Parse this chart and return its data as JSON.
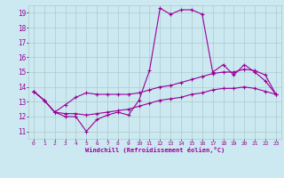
{
  "xlabel": "Windchill (Refroidissement éolien,°C)",
  "ylabel": "",
  "bg_color": "#cce8f0",
  "grid_color": "#aacccc",
  "line_color": "#990099",
  "x_data": [
    0,
    1,
    2,
    3,
    4,
    5,
    6,
    7,
    8,
    9,
    10,
    11,
    12,
    13,
    14,
    15,
    16,
    17,
    18,
    19,
    20,
    21,
    22,
    23
  ],
  "line1": [
    13.7,
    13.1,
    12.3,
    12.0,
    12.0,
    11.0,
    11.8,
    12.1,
    12.3,
    12.1,
    13.1,
    15.1,
    19.3,
    18.9,
    19.2,
    19.2,
    18.9,
    15.0,
    15.5,
    14.8,
    15.5,
    15.0,
    14.4,
    13.5
  ],
  "line2": [
    13.7,
    13.1,
    12.3,
    12.8,
    13.3,
    13.6,
    13.5,
    13.5,
    13.5,
    13.5,
    13.6,
    13.8,
    14.0,
    14.1,
    14.3,
    14.5,
    14.7,
    14.9,
    15.0,
    15.0,
    15.2,
    15.1,
    14.8,
    13.5
  ],
  "line3": [
    13.7,
    13.1,
    12.3,
    12.2,
    12.2,
    12.1,
    12.2,
    12.3,
    12.4,
    12.5,
    12.7,
    12.9,
    13.1,
    13.2,
    13.3,
    13.5,
    13.6,
    13.8,
    13.9,
    13.9,
    14.0,
    13.9,
    13.7,
    13.5
  ],
  "xlim": [
    -0.5,
    23.5
  ],
  "ylim": [
    10.5,
    19.5
  ],
  "yticks": [
    11,
    12,
    13,
    14,
    15,
    16,
    17,
    18,
    19
  ],
  "xticks": [
    0,
    1,
    2,
    3,
    4,
    5,
    6,
    7,
    8,
    9,
    10,
    11,
    12,
    13,
    14,
    15,
    16,
    17,
    18,
    19,
    20,
    21,
    22,
    23
  ]
}
